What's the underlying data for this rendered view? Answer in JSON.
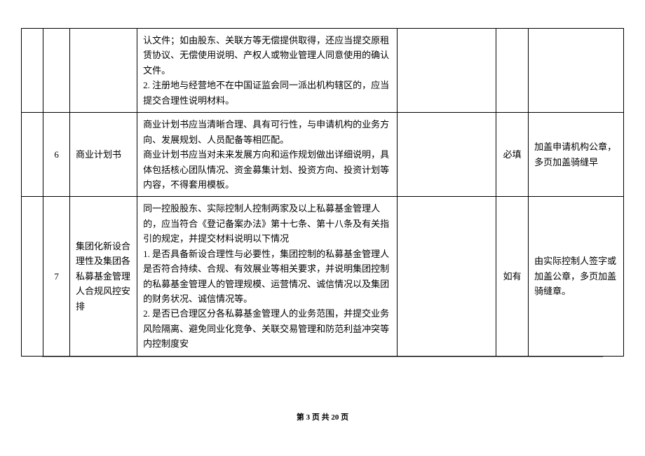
{
  "table": {
    "rows": [
      {
        "num": "",
        "name": "",
        "content": "认文件；如由股东、关联方等无偿提供取得，还应当提交原租赁协议、无偿使用说明、产权人或物业管理人同意使用的确认文件。\n2. 注册地与经营地不在中国证监会同一派出机构辖区的，应当提交合理性说明材料。",
        "required": "",
        "notes": ""
      },
      {
        "num": "6",
        "name": "商业计划书",
        "content": "商业计划书应当清晰合理、具有可行性，与申请机构的业务方向、发展规划、人员配备等相匹配。\n商业计划书应当对未来发展方向和运作规划做出详细说明，具体包括核心团队情况、资金募集计划、投资方向、投资计划等内容，不得套用模板。",
        "required": "必填",
        "notes": "加盖申请机构公章，多页加盖骑缝早"
      },
      {
        "num": "7",
        "name": "集团化新设合理性及集团各私募基金管理人合规风控安排",
        "content": "同一控股股东、实际控制人控制两家及以上私募基金管理人的，应当符合《登记备案办法》第十七条、第十八条及有关指引的规定，并提交材料说明以下情况\n1. 是否具备新设合理性与必要性，集团控制的私募基金管理人是否符合持续、合规、有效展业等相关要求，并说明集团控制的私募基金管理人的管理规模、运营情况、诚信情况以及集团的财务状况、诚信情况等。\n2. 是否已合理区分各私募基金管理人的业务范围，并提交业务风险隔离、避免同业化竞争、关联交易管理和防范利益冲突等内控制度安",
        "required": "如有",
        "notes": "由实际控制人签字或加盖公章，多页加盖骑缝章。"
      }
    ]
  },
  "footer": "第 3 页 共 20 页"
}
